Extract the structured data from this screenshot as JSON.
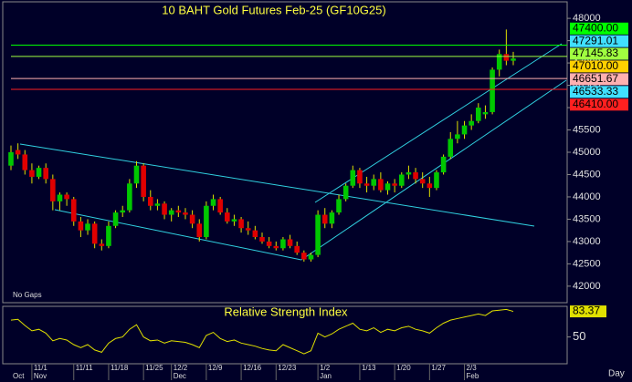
{
  "chart_data": {
    "type": "candlestick",
    "title": "10 BAHT Gold Futures Feb-25 (GF10G25)",
    "note": "No Gaps",
    "period": "Day",
    "categories": [
      null,
      null,
      null,
      "11/1",
      null,
      null,
      null,
      null,
      null,
      "11/11",
      null,
      null,
      null,
      null,
      "11/18",
      null,
      null,
      null,
      null,
      "11/25",
      null,
      null,
      null,
      "12/2",
      null,
      null,
      null,
      null,
      "12/9",
      null,
      null,
      null,
      null,
      "12/16",
      null,
      null,
      null,
      null,
      "12/23",
      null,
      null,
      null,
      null,
      null,
      "1/2",
      null,
      null,
      null,
      null,
      null,
      "1/13",
      null,
      null,
      null,
      null,
      "1/20",
      null,
      null,
      null,
      null,
      "1/27",
      null,
      null,
      null,
      null,
      "2/3",
      null,
      null,
      null,
      null,
      null,
      null,
      null
    ],
    "months": [
      "Oct",
      null,
      null,
      "Nov",
      null,
      null,
      null,
      null,
      null,
      null,
      null,
      null,
      null,
      null,
      null,
      null,
      null,
      null,
      null,
      null,
      null,
      null,
      null,
      "Dec",
      null,
      null,
      null,
      null,
      null,
      null,
      null,
      null,
      null,
      null,
      null,
      null,
      null,
      null,
      null,
      null,
      null,
      null,
      null,
      null,
      "Jan",
      null,
      null,
      null,
      null,
      null,
      null,
      null,
      null,
      null,
      null,
      null,
      null,
      null,
      null,
      null,
      null,
      null,
      null,
      null,
      null,
      "Feb",
      null,
      null,
      null,
      null,
      null,
      null,
      null
    ],
    "open": [
      44700,
      45050,
      44950,
      44600,
      44450,
      44650,
      44400,
      43900,
      44050,
      43950,
      43450,
      43250,
      43400,
      42950,
      42900,
      43350,
      43650,
      43700,
      44300,
      44700,
      44000,
      43800,
      43850,
      43600,
      43700,
      43650,
      43600,
      43400,
      43100,
      43800,
      43950,
      43650,
      43450,
      43500,
      43300,
      43250,
      43100,
      43000,
      42900,
      42850,
      43050,
      42900,
      42750,
      42600,
      42700,
      43600,
      43400,
      43650,
      43950,
      44250,
      44600,
      44300,
      44250,
      44400,
      44150,
      44300,
      44250,
      44500,
      44550,
      44400,
      44300,
      44200,
      44550,
      44900,
      45300,
      45400,
      45600,
      45700,
      45850,
      45900,
      46850,
      47200,
      47050
    ],
    "high": [
      45150,
      45200,
      45050,
      44750,
      44700,
      44750,
      44500,
      44100,
      44100,
      44000,
      43550,
      43500,
      43450,
      43050,
      43450,
      43700,
      43800,
      44400,
      44800,
      44750,
      44150,
      43950,
      43900,
      43750,
      43800,
      43750,
      43700,
      43500,
      43900,
      44050,
      44000,
      43750,
      43600,
      43550,
      43450,
      43350,
      43200,
      43100,
      43000,
      43100,
      43150,
      43000,
      42800,
      42750,
      43700,
      43750,
      43700,
      44050,
      44300,
      44700,
      44650,
      44450,
      44500,
      44550,
      44350,
      44400,
      44550,
      44700,
      44650,
      44550,
      44450,
      44600,
      44950,
      45450,
      45700,
      45700,
      45850,
      46100,
      46050,
      46900,
      47300,
      47750,
      47250
    ],
    "low": [
      44600,
      44850,
      44500,
      44300,
      44400,
      44300,
      43700,
      43700,
      43800,
      43350,
      43100,
      43150,
      42850,
      42800,
      42850,
      43300,
      43550,
      43650,
      44200,
      43900,
      43700,
      43700,
      43500,
      43450,
      43550,
      43500,
      43300,
      43000,
      43050,
      43700,
      43600,
      43400,
      43350,
      43200,
      43150,
      43050,
      42950,
      42850,
      42800,
      42800,
      42850,
      42700,
      42550,
      42550,
      42650,
      43300,
      43300,
      43600,
      43900,
      44200,
      44200,
      44100,
      44150,
      44100,
      44050,
      44100,
      44200,
      44400,
      44300,
      44200,
      44000,
      44150,
      44500,
      44850,
      45200,
      45300,
      45500,
      45650,
      45750,
      45850,
      46700,
      46950,
      46950
    ],
    "close": [
      45000,
      44950,
      44600,
      44450,
      44650,
      44400,
      43900,
      44050,
      43950,
      43450,
      43250,
      43400,
      42950,
      42900,
      43350,
      43650,
      43700,
      44300,
      44700,
      44000,
      43800,
      43850,
      43600,
      43700,
      43650,
      43600,
      43400,
      43100,
      43800,
      43950,
      43650,
      43450,
      43500,
      43300,
      43250,
      43100,
      43000,
      42900,
      42850,
      43050,
      42900,
      42750,
      42600,
      42700,
      43600,
      43400,
      43650,
      43950,
      44250,
      44600,
      44300,
      44250,
      44400,
      44150,
      44300,
      44250,
      44500,
      44550,
      44400,
      44300,
      44200,
      44550,
      44900,
      45300,
      45400,
      45600,
      45700,
      46000,
      45900,
      46850,
      47200,
      47050,
      47100
    ],
    "up_color": "#00c800",
    "down_color": "#e00000",
    "ylim": [
      41630,
      48370
    ],
    "yticks": [
      42000,
      42500,
      43000,
      43500,
      44000,
      44500,
      45000,
      45500,
      46000,
      46500,
      47000,
      47500,
      48000
    ],
    "levels": [
      {
        "value": 47400,
        "label": "47400.00",
        "color": "#00ff00",
        "line": true
      },
      {
        "value": 47291.01,
        "label": "47291.01",
        "color": "#40e0ff",
        "line": false
      },
      {
        "value": 47145.83,
        "label": "47145.83",
        "color": "#a0ff40",
        "line": true
      },
      {
        "value": 47010,
        "label": "47010.00",
        "color": "#ffd000",
        "line": false
      },
      {
        "value": 46651.67,
        "label": "46651.67",
        "color": "#ffb0b0",
        "line": true
      },
      {
        "value": 46533.33,
        "label": "46533.33",
        "color": "#40e0ff",
        "line": false
      },
      {
        "value": 46410,
        "label": "46410.00",
        "color": "#ff2020",
        "line": true
      }
    ],
    "rsi": {
      "title": "Relative Strength Index",
      "color": "#e0e000",
      "last_label": "83.37",
      "ylim": [
        15,
        90
      ],
      "yticks": [
        50
      ],
      "values": [
        72,
        73,
        65,
        58,
        60,
        55,
        45,
        48,
        46,
        40,
        36,
        40,
        33,
        30,
        42,
        48,
        50,
        60,
        66,
        50,
        45,
        46,
        42,
        45,
        44,
        43,
        40,
        36,
        52,
        56,
        48,
        44,
        46,
        42,
        40,
        38,
        35,
        33,
        32,
        40,
        36,
        32,
        28,
        32,
        55,
        50,
        54,
        60,
        64,
        68,
        60,
        58,
        62,
        56,
        60,
        58,
        62,
        64,
        60,
        58,
        55,
        62,
        68,
        72,
        74,
        76,
        78,
        80,
        78,
        84,
        85,
        86,
        83.37
      ]
    }
  }
}
